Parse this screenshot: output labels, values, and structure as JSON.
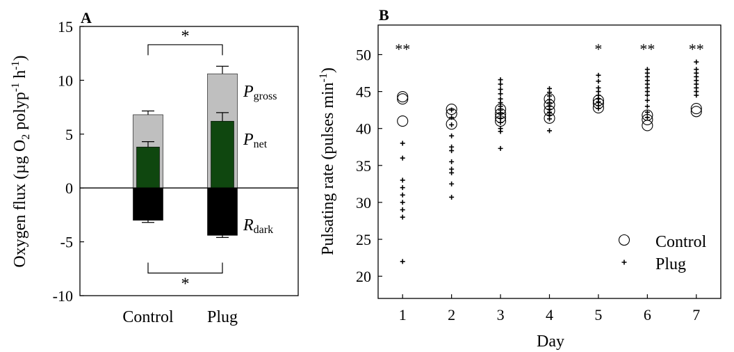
{
  "chart_data": [
    {
      "panel": "A",
      "type": "bar",
      "categories": [
        "Control",
        "Plug"
      ],
      "ylim": [
        -10,
        15
      ],
      "yticks": [
        "15",
        "10",
        "5",
        "0",
        "-5",
        "-10"
      ],
      "ylabel": {
        "pre": "Oxygen flux (µg O",
        "sub": "2",
        "mid": " polyp",
        "sup1": "-1",
        "mid2": " h",
        "sup2": "-1",
        "post": ")"
      },
      "series": [
        {
          "key": "gross",
          "label_main": "P",
          "label_sub": "gross",
          "values": [
            6.8,
            10.6
          ],
          "errors": [
            0.35,
            0.7
          ],
          "color": "#bfbfbf"
        },
        {
          "key": "net",
          "label_main": "P",
          "label_sub": "net",
          "values": [
            3.8,
            6.2
          ],
          "errors": [
            0.5,
            0.8
          ],
          "color": "#0f470f"
        },
        {
          "key": "dark",
          "label_main": "R",
          "label_sub": "dark",
          "values": [
            -3.0,
            -4.4
          ],
          "errors": [
            0.2,
            0.2
          ],
          "color": "#000000"
        }
      ],
      "significance": [
        {
          "label": "*",
          "level": 13.3
        },
        {
          "label": "*",
          "level": -7.9
        }
      ]
    },
    {
      "panel": "B",
      "type": "scatter",
      "xlabel": "Day",
      "ylabel": {
        "pre": "Pulsating rate (pulses min",
        "sup": "-1",
        "post": ")"
      },
      "xlim": [
        0.5,
        7.5
      ],
      "ylim": [
        17,
        54
      ],
      "xticks": [
        "1",
        "2",
        "3",
        "4",
        "5",
        "6",
        "7"
      ],
      "yticks": [
        "20",
        "25",
        "30",
        "35",
        "40",
        "45",
        "50"
      ],
      "legend": {
        "position": "bottom-right",
        "items": [
          "Control",
          "Plug"
        ]
      },
      "series": [
        {
          "name": "Control",
          "marker": "open-circle",
          "points": [
            [
              1,
              44.3
            ],
            [
              1,
              44.0
            ],
            [
              1,
              41.0
            ],
            [
              2,
              42.6
            ],
            [
              2,
              42.0
            ],
            [
              2,
              40.6
            ],
            [
              3,
              42.6
            ],
            [
              3,
              42.0
            ],
            [
              3,
              41.5
            ],
            [
              3,
              41.0
            ],
            [
              4,
              44.0
            ],
            [
              4,
              43.2
            ],
            [
              4,
              42.4
            ],
            [
              4,
              41.4
            ],
            [
              5,
              43.8
            ],
            [
              5,
              43.4
            ],
            [
              5,
              42.8
            ],
            [
              6,
              41.8
            ],
            [
              6,
              41.2
            ],
            [
              6,
              40.4
            ],
            [
              7,
              42.7
            ],
            [
              7,
              42.3
            ]
          ]
        },
        {
          "name": "Plug",
          "marker": "plus",
          "points": [
            [
              1,
              38.0
            ],
            [
              1,
              36.0
            ],
            [
              1,
              33.0
            ],
            [
              1,
              32.0
            ],
            [
              1,
              31.0
            ],
            [
              1,
              30.0
            ],
            [
              1,
              29.0
            ],
            [
              1,
              28.0
            ],
            [
              1,
              22.0
            ],
            [
              2,
              42.5
            ],
            [
              2,
              41.5
            ],
            [
              2,
              40.5
            ],
            [
              2,
              39.0
            ],
            [
              2,
              37.5
            ],
            [
              2,
              37.0
            ],
            [
              2,
              35.5
            ],
            [
              2,
              34.5
            ],
            [
              2,
              34.0
            ],
            [
              2,
              32.5
            ],
            [
              2,
              30.7
            ],
            [
              3,
              46.6
            ],
            [
              3,
              46.0
            ],
            [
              3,
              45.3
            ],
            [
              3,
              44.7
            ],
            [
              3,
              44.0
            ],
            [
              3,
              43.5
            ],
            [
              3,
              43.0
            ],
            [
              3,
              42.5
            ],
            [
              3,
              42.0
            ],
            [
              3,
              41.4
            ],
            [
              3,
              40.8
            ],
            [
              3,
              40.0
            ],
            [
              3,
              39.6
            ],
            [
              3,
              37.3
            ],
            [
              4,
              45.4
            ],
            [
              4,
              44.9
            ],
            [
              4,
              44.4
            ],
            [
              4,
              43.9
            ],
            [
              4,
              43.5
            ],
            [
              4,
              43.0
            ],
            [
              4,
              42.6
            ],
            [
              4,
              42.2
            ],
            [
              4,
              41.8
            ],
            [
              4,
              41.3
            ],
            [
              4,
              39.7
            ],
            [
              5,
              47.2
            ],
            [
              5,
              46.4
            ],
            [
              5,
              45.5
            ],
            [
              5,
              45.0
            ],
            [
              5,
              44.5
            ],
            [
              5,
              44.0
            ],
            [
              5,
              43.6
            ],
            [
              5,
              43.1
            ],
            [
              5,
              42.7
            ],
            [
              6,
              48.0
            ],
            [
              6,
              47.5
            ],
            [
              6,
              47.0
            ],
            [
              6,
              46.5
            ],
            [
              6,
              46.0
            ],
            [
              6,
              45.5
            ],
            [
              6,
              45.0
            ],
            [
              6,
              44.5
            ],
            [
              6,
              43.8
            ],
            [
              6,
              43.0
            ],
            [
              6,
              42.2
            ],
            [
              6,
              41.5
            ],
            [
              7,
              49.0
            ],
            [
              7,
              48.0
            ],
            [
              7,
              47.5
            ],
            [
              7,
              47.0
            ],
            [
              7,
              46.5
            ],
            [
              7,
              46.0
            ],
            [
              7,
              45.5
            ],
            [
              7,
              45.0
            ],
            [
              7,
              44.5
            ]
          ]
        }
      ],
      "significance": [
        "**",
        "",
        "",
        "",
        "*",
        "**",
        "**"
      ]
    }
  ]
}
